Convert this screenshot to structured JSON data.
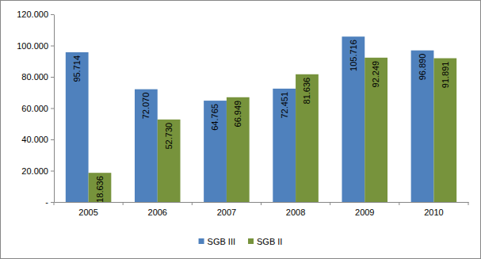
{
  "chart_data": {
    "type": "bar",
    "categories": [
      "2005",
      "2006",
      "2007",
      "2008",
      "2009",
      "2010"
    ],
    "series": [
      {
        "name": "SGB III",
        "color": "#4f81bd",
        "values": [
          95714,
          72070,
          64765,
          72451,
          105716,
          96890
        ],
        "value_labels": [
          "95.714",
          "72.070",
          "64.765",
          "72.451",
          "105.716",
          "96.890"
        ]
      },
      {
        "name": "SGB II",
        "color": "#77933c",
        "values": [
          18636,
          52730,
          66949,
          81636,
          92249,
          91891
        ],
        "value_labels": [
          "18.636",
          "52.730",
          "66.949",
          "81.636",
          "92.249",
          "91.891"
        ]
      }
    ],
    "ylim": [
      0,
      120000
    ],
    "yticks": [
      {
        "value": 0,
        "label": "-"
      },
      {
        "value": 20000,
        "label": "20.000"
      },
      {
        "value": 40000,
        "label": "40.000"
      },
      {
        "value": 60000,
        "label": "60.000"
      },
      {
        "value": 80000,
        "label": "80.000"
      },
      {
        "value": 100000,
        "label": "100.000"
      },
      {
        "value": 120000,
        "label": "120.000"
      }
    ],
    "grid": false,
    "data_labels": true,
    "legend": "bottom"
  }
}
